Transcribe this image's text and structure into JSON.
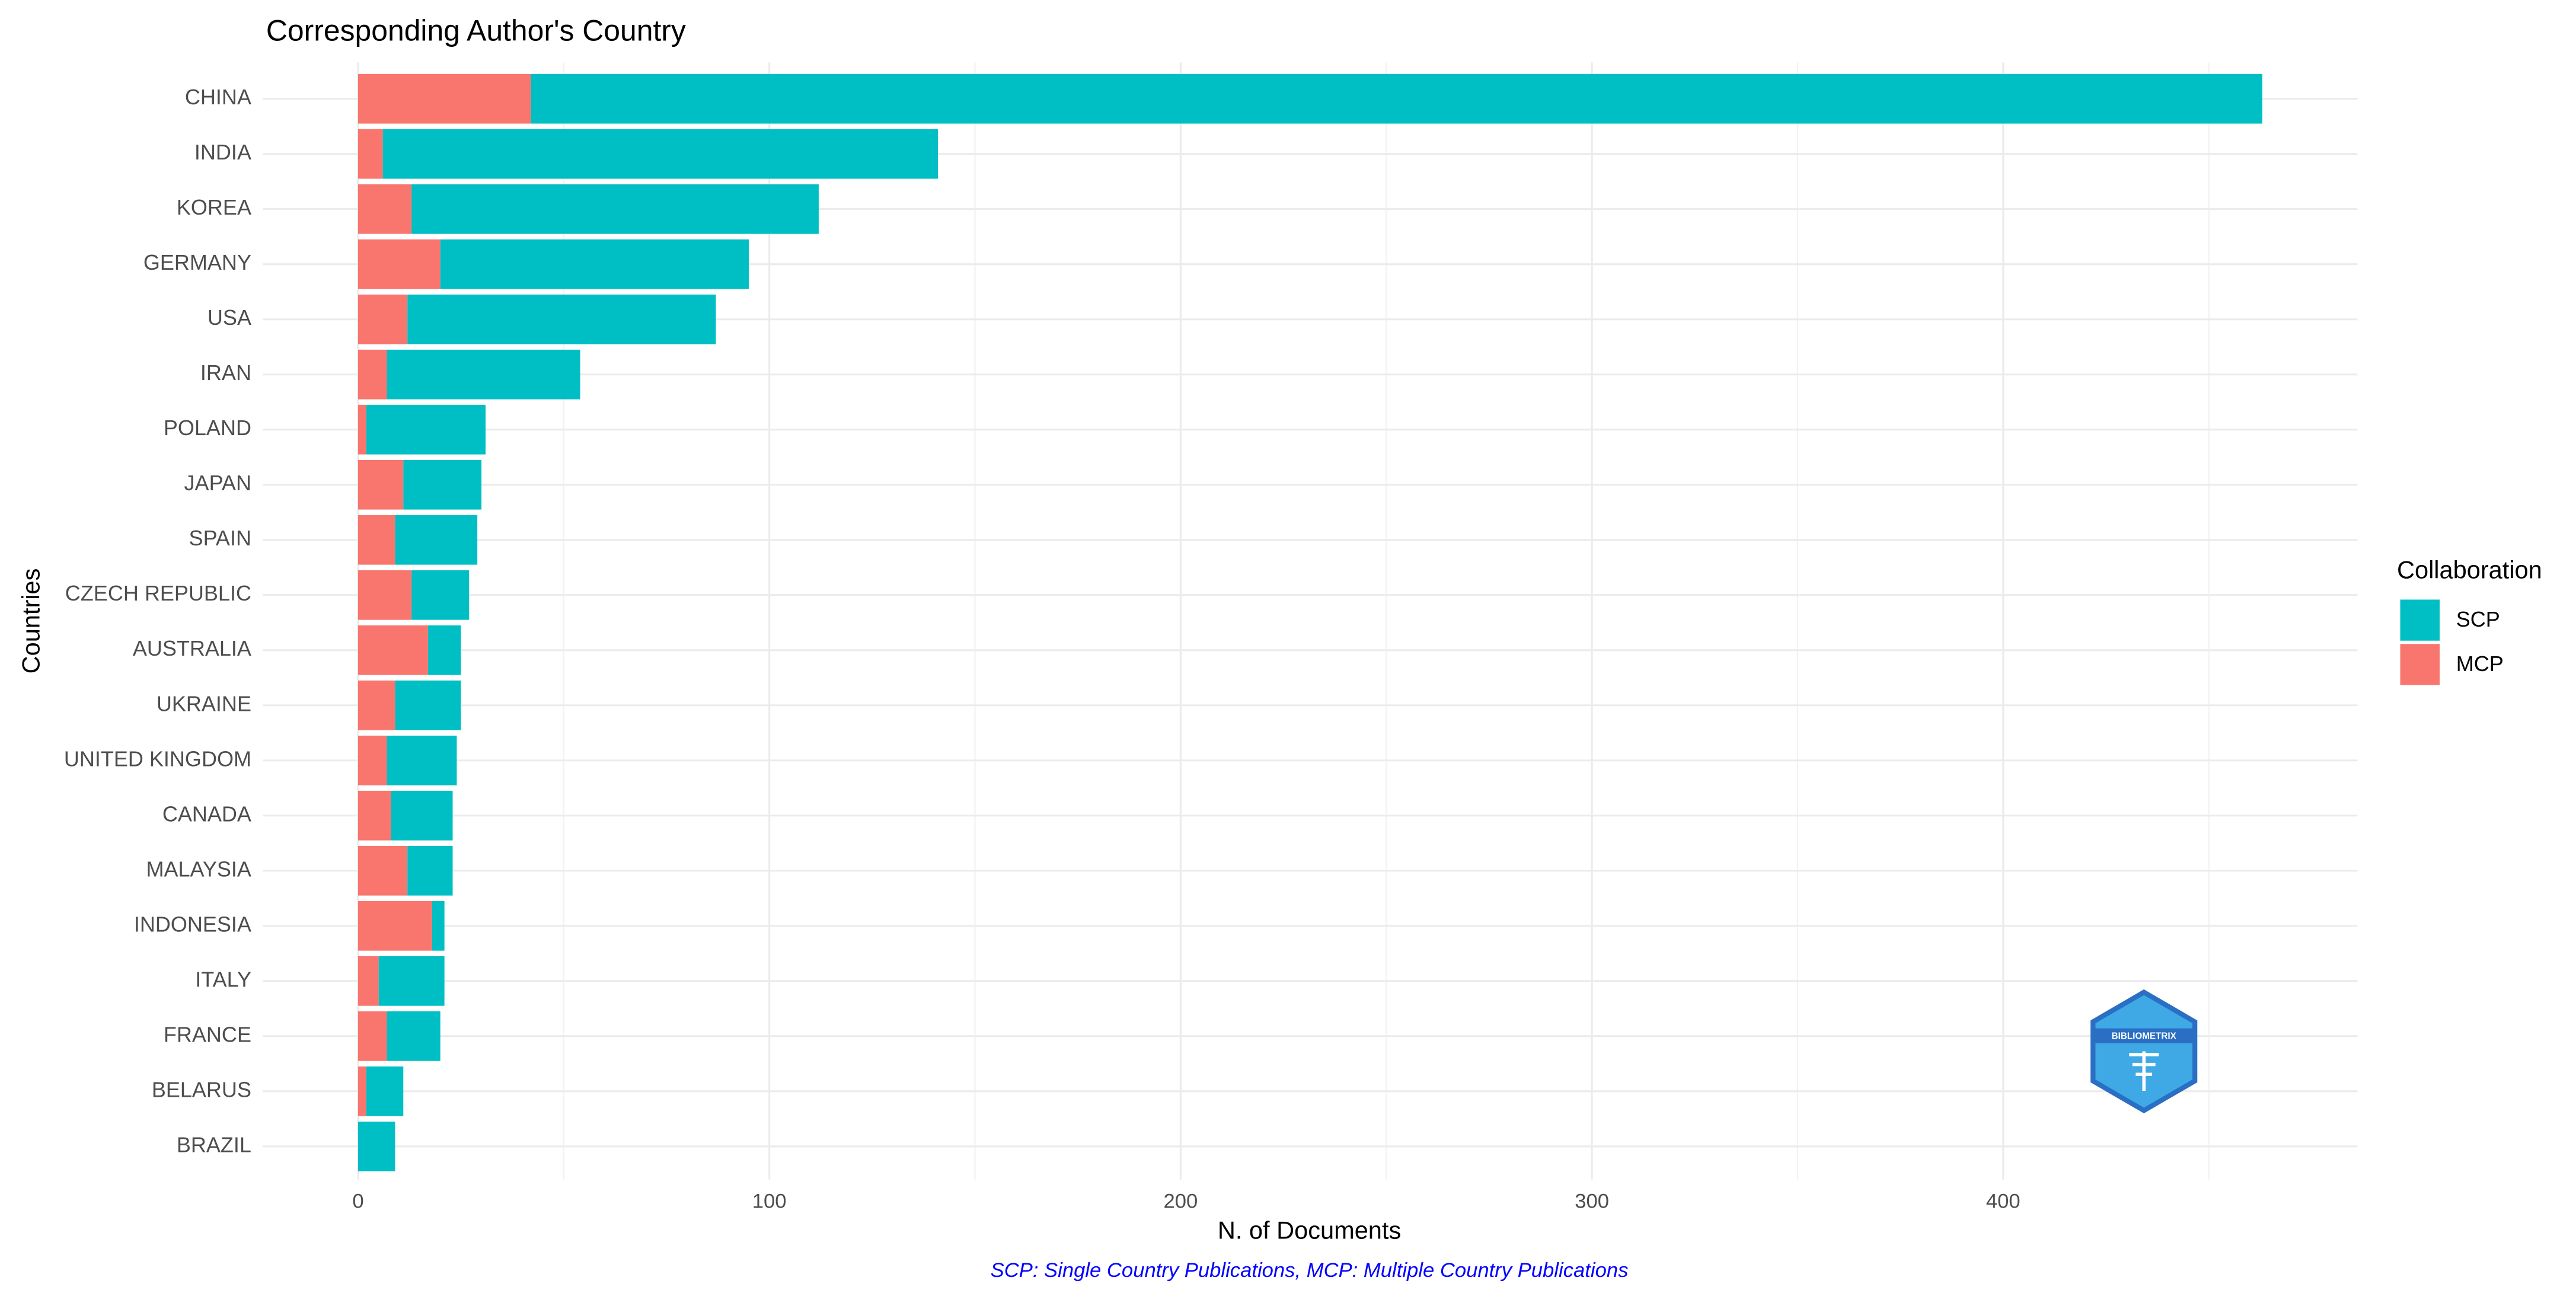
{
  "chart_data": {
    "type": "stacked-barh",
    "title": "Corresponding Author's Country",
    "x_label": "N. of Documents",
    "y_label": "Countries",
    "caption": "SCP: Single Country Publications, MCP: Multiple Country Publications",
    "legend_title": "Collaboration",
    "legend": "right",
    "grid": true,
    "logo_text": "BIBLIOMETRIX",
    "categories": [
      "CHINA",
      "INDIA",
      "KOREA",
      "GERMANY",
      "USA",
      "IRAN",
      "POLAND",
      "JAPAN",
      "SPAIN",
      "CZECH REPUBLIC",
      "AUSTRALIA",
      "UKRAINE",
      "UNITED KINGDOM",
      "CANADA",
      "MALAYSIA",
      "INDONESIA",
      "ITALY",
      "FRANCE",
      "BELARUS",
      "BRAZIL"
    ],
    "series": [
      {
        "name": "SCP",
        "color": "#00bfc4",
        "values": [
          421,
          135,
          99,
          75,
          75,
          47,
          29,
          19,
          20,
          14,
          8,
          16,
          17,
          15,
          11,
          3,
          16,
          13,
          9,
          9
        ]
      },
      {
        "name": "MCP",
        "color": "#f8766d",
        "values": [
          42,
          6,
          13,
          20,
          12,
          7,
          2,
          11,
          9,
          13,
          17,
          9,
          7,
          8,
          12,
          18,
          5,
          7,
          2,
          0
        ]
      }
    ],
    "xlim": [
      -23.15,
      486.15
    ],
    "xticks": [
      0,
      100,
      200,
      300,
      400
    ]
  }
}
